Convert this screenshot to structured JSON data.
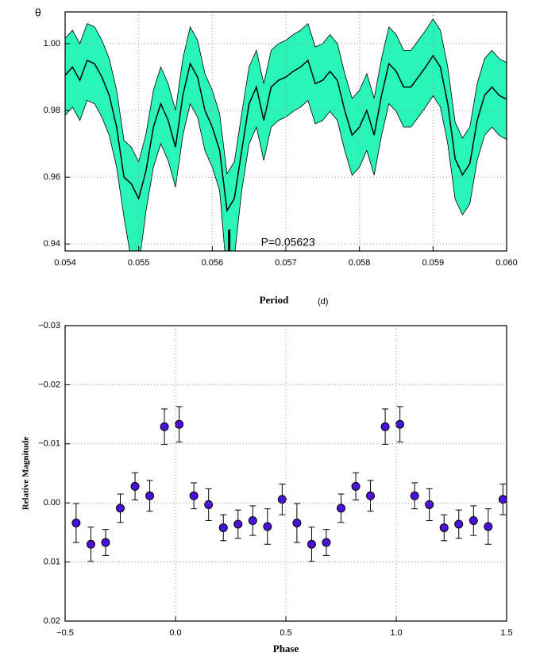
{
  "chart_data": [
    {
      "type": "line",
      "y_label": "θ",
      "x_label": "Period",
      "x_unit": "(d)",
      "annotation": "P=0.05623",
      "period_marker": 0.05623,
      "x": [
        0.054,
        0.0541,
        0.0542,
        0.0543,
        0.0544,
        0.0545,
        0.0546,
        0.0547,
        0.0548,
        0.0549,
        0.055,
        0.0551,
        0.0552,
        0.0553,
        0.0554,
        0.0555,
        0.0556,
        0.0557,
        0.0558,
        0.0559,
        0.056,
        0.0561,
        0.0562,
        0.0563,
        0.0564,
        0.0565,
        0.0566,
        0.0567,
        0.0568,
        0.0569,
        0.057,
        0.0571,
        0.0572,
        0.0573,
        0.0574,
        0.0575,
        0.0576,
        0.0577,
        0.0578,
        0.0579,
        0.058,
        0.0581,
        0.0582,
        0.0583,
        0.0584,
        0.0585,
        0.0586,
        0.0587,
        0.0588,
        0.0589,
        0.059,
        0.0591,
        0.0592,
        0.0593,
        0.0594,
        0.0595,
        0.0596,
        0.0597,
        0.0598,
        0.0599,
        0.06
      ],
      "series": [
        {
          "color": "#000000",
          "values": [
            0.9905,
            0.993,
            0.989,
            0.995,
            0.994,
            0.99,
            0.9845,
            0.975,
            0.96,
            0.958,
            0.9536,
            0.962,
            0.975,
            0.982,
            0.977,
            0.969,
            0.9845,
            0.994,
            0.99,
            0.98,
            0.975,
            0.968,
            0.95,
            0.9536,
            0.968,
            0.982,
            0.987,
            0.977,
            0.987,
            0.989,
            0.99,
            0.9917,
            0.993,
            0.995,
            0.988,
            0.989,
            0.9917,
            0.989,
            0.98,
            0.9726,
            0.975,
            0.98,
            0.9726,
            0.9845,
            0.994,
            0.9917,
            0.987,
            0.987,
            0.99,
            0.993,
            0.9964,
            0.993,
            0.982,
            0.9655,
            0.9607,
            0.964,
            0.977,
            0.9845,
            0.987,
            0.9845,
            0.9833
          ],
          "band": {
            "color": "#2af5b8",
            "upper": [
              1.0015,
              1.004,
              1.0,
              1.006,
              1.005,
              1.001,
              0.9955,
              0.986,
              0.971,
              0.969,
              0.9646,
              0.973,
              0.986,
              0.993,
              0.988,
              0.98,
              0.9955,
              1.005,
              1.001,
              0.991,
              0.986,
              0.979,
              0.961,
              0.9646,
              0.979,
              0.993,
              0.998,
              0.988,
              0.998,
              1.0,
              1.001,
              1.0027,
              1.004,
              1.006,
              0.999,
              1.0,
              1.0027,
              1.0,
              0.991,
              0.9836,
              0.986,
              0.991,
              0.9836,
              0.9955,
              1.005,
              1.0027,
              0.998,
              0.998,
              1.001,
              1.004,
              1.0074,
              1.004,
              0.993,
              0.9765,
              0.9717,
              0.975,
              0.988,
              0.9955,
              0.998,
              0.9955,
              0.9943
            ],
            "lower": [
              0.9785,
              0.981,
              0.977,
              0.983,
              0.982,
              0.978,
              0.9725,
              0.963,
              0.948,
              0.935,
              0.933,
              0.95,
              0.963,
              0.97,
              0.965,
              0.957,
              0.9725,
              0.982,
              0.978,
              0.968,
              0.963,
              0.956,
              0.93,
              0.936,
              0.956,
              0.97,
              0.975,
              0.965,
              0.975,
              0.977,
              0.978,
              0.9797,
              0.981,
              0.983,
              0.976,
              0.977,
              0.9797,
              0.977,
              0.968,
              0.9606,
              0.963,
              0.968,
              0.9606,
              0.9725,
              0.982,
              0.9797,
              0.975,
              0.975,
              0.978,
              0.981,
              0.9844,
              0.981,
              0.97,
              0.9535,
              0.9487,
              0.952,
              0.965,
              0.9725,
              0.975,
              0.9725,
              0.9713
            ]
          }
        }
      ],
      "xlim": [
        0.054,
        0.06
      ],
      "xticks": [
        0.054,
        0.055,
        0.056,
        0.057,
        0.058,
        0.059,
        {
          "value": 0.06,
          "label": "0.060"
        }
      ],
      "ylim": [
        0.9379,
        1.0095
      ],
      "yticks": [
        0.94,
        0.96,
        0.98,
        {
          "value": 1,
          "label": "1.00"
        }
      ],
      "grid": true
    },
    {
      "type": "scatter",
      "x_label": "Phase",
      "y_label": "Relative Magnitude",
      "x": [
        -0.45,
        -0.3833,
        -0.3167,
        -0.25,
        -0.1833,
        -0.1167,
        -0.05,
        0.0167,
        0.0833,
        0.15,
        0.2167,
        0.2833,
        0.35,
        0.4167,
        0.4833,
        0.55,
        0.6167,
        0.6833,
        0.75,
        0.8167,
        0.8833,
        0.95,
        1.0167,
        1.0833,
        1.15,
        1.2167,
        1.2833,
        1.35,
        1.4167,
        1.4833
      ],
      "series": [
        {
          "color": "#4a12d8",
          "values": [
            0.0034,
            0.007,
            0.0067,
            0.0009,
            -0.0028,
            -0.0012,
            -0.0129,
            -0.0133,
            -0.0012,
            0.0003,
            0.0042,
            0.0036,
            0.003,
            0.004,
            -0.0006,
            0.0034,
            0.007,
            0.0067,
            0.0009,
            -0.0028,
            -0.0012,
            -0.0129,
            -0.0133,
            -0.0012,
            0.0003,
            0.0042,
            0.0036,
            0.003,
            0.004,
            -0.0006
          ],
          "errors": [
            0.0033,
            0.0029,
            0.0022,
            0.0024,
            0.0023,
            0.0026,
            0.003,
            0.003,
            0.0022,
            0.0027,
            0.0022,
            0.0024,
            0.0025,
            0.003,
            0.0026,
            0.0033,
            0.0029,
            0.0022,
            0.0024,
            0.0023,
            0.0026,
            0.003,
            0.003,
            0.0022,
            0.0027,
            0.0022,
            0.0024,
            0.0025,
            0.003,
            0.0026
          ]
        }
      ],
      "xlim": [
        -0.5,
        1.5
      ],
      "xticks": [
        {
          "value": -0.5,
          "label": "−0.5"
        },
        {
          "value": 0,
          "label": "0.0"
        },
        0.5,
        {
          "value": 1,
          "label": "1.0"
        },
        1.5
      ],
      "ylim": [
        0.02,
        -0.03
      ],
      "yticks": [
        {
          "value": -0.03,
          "label": "−0.03"
        },
        {
          "value": -0.02,
          "label": "−0.02"
        },
        {
          "value": -0.01,
          "label": "−0.01"
        },
        {
          "value": 0,
          "label": "0.00"
        },
        0.01,
        0.02
      ],
      "grid": true
    }
  ]
}
